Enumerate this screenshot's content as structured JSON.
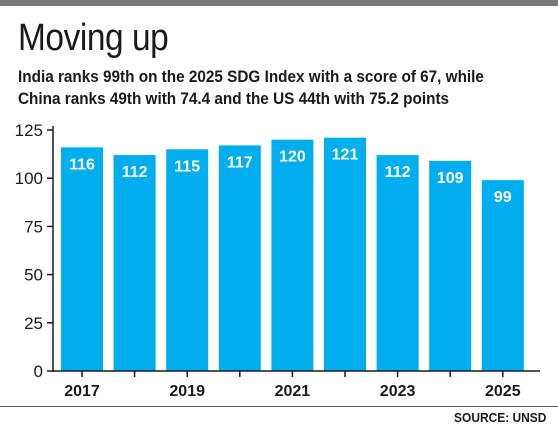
{
  "title": "Moving up",
  "subtitle_line1": "India ranks 99th on the 2025 SDG Index with a score of 67, while",
  "subtitle_line2": "China ranks 49th with 74.4 and the US 44th with 75.2 points",
  "source": "SOURCE: UNSD",
  "colors": {
    "bar": "#00aeef",
    "label": "#ffffff",
    "rule": "#7a7a7a"
  },
  "chart_data": {
    "type": "bar",
    "categories": [
      "2017",
      "2018",
      "2019",
      "2020",
      "2021",
      "2022",
      "2023",
      "2024",
      "2025"
    ],
    "x_tick_labels": [
      "2017",
      "",
      "2019",
      "",
      "2021",
      "",
      "2023",
      "",
      "2025"
    ],
    "values": [
      116,
      112,
      115,
      117,
      120,
      121,
      112,
      109,
      99
    ],
    "yticks": [
      0,
      25,
      50,
      75,
      100,
      125
    ],
    "ylim": [
      0,
      125
    ],
    "grid": false,
    "xlabel": "",
    "ylabel": ""
  }
}
